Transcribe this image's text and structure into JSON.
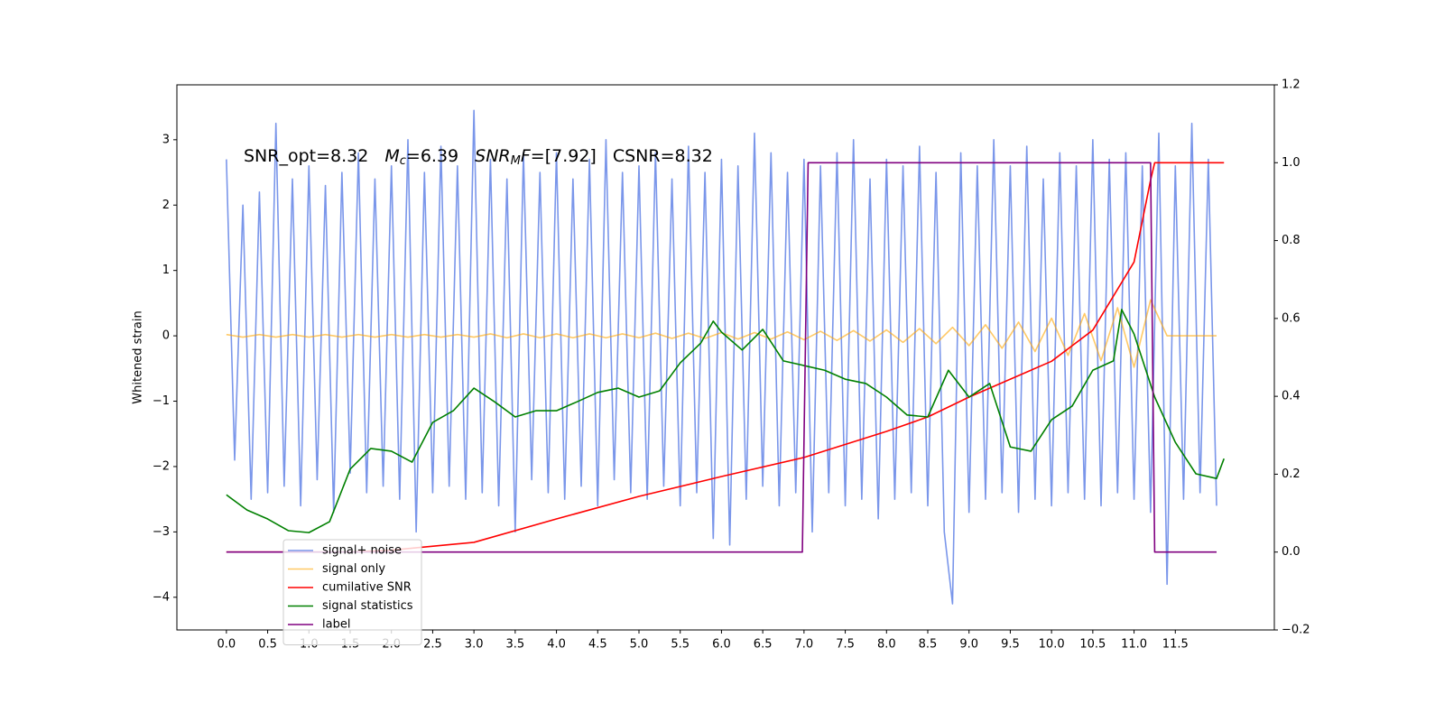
{
  "chart_data": {
    "type": "line",
    "ylabel": "Whitened strain",
    "annotation": [
      [
        {
          "text": "SNR_opt=8.32"
        }
      ],
      [
        {
          "text": "M",
          "style": "italic"
        },
        {
          "text": "c",
          "style": "sub"
        },
        {
          "text": "=6.39"
        }
      ],
      [
        {
          "text": "SNR",
          "style": "italic"
        },
        {
          "text": "M",
          "style": "sub"
        },
        {
          "text": "F",
          "style": "italic"
        },
        {
          "text": "=[7.92]"
        }
      ],
      [
        {
          "text": "CSNR=8.32"
        }
      ]
    ],
    "xlim": [
      -0.6,
      12.7
    ],
    "ylim": [
      -4.5,
      3.84
    ],
    "y2lim": [
      -0.2,
      1.2
    ],
    "xticks": [
      {
        "value": 0,
        "label": "0.0"
      },
      0.5,
      {
        "value": 1,
        "label": "1.0"
      },
      1.5,
      {
        "value": 2,
        "label": "2.0"
      },
      2.5,
      {
        "value": 3,
        "label": "3.0"
      },
      3.5,
      {
        "value": 4,
        "label": "4.0"
      },
      4.5,
      {
        "value": 5,
        "label": "5.0"
      },
      5.5,
      {
        "value": 6,
        "label": "6.0"
      },
      6.5,
      {
        "value": 7,
        "label": "7.0"
      },
      7.5,
      {
        "value": 8,
        "label": "8.0"
      },
      8.5,
      {
        "value": 9,
        "label": "9.0"
      },
      9.5,
      {
        "value": 10,
        "label": "10.0"
      },
      10.5,
      {
        "value": 11,
        "label": "11.0"
      },
      11.5
    ],
    "yticks": [
      {
        "value": -4,
        "label": "−4"
      },
      {
        "value": -3,
        "label": "−3"
      },
      {
        "value": -2,
        "label": "−2"
      },
      {
        "value": -1,
        "label": "−1"
      },
      0,
      1,
      2,
      3
    ],
    "y2ticks": [
      {
        "value": -0.2,
        "label": "−0.2"
      },
      {
        "value": 0,
        "label": "0.0"
      },
      0.2,
      0.4,
      0.6,
      0.8,
      {
        "value": 1,
        "label": "1.0"
      },
      1.2
    ],
    "legend": "lower left",
    "series": [
      {
        "name": "signal+ noise",
        "color": "#4169e1",
        "alpha": 0.7,
        "axis": "y",
        "x": [
          0,
          0.1,
          0.2,
          0.3,
          0.4,
          0.5,
          0.6,
          0.7,
          0.8,
          0.9,
          1,
          1.1,
          1.2,
          1.3,
          1.4,
          1.5,
          1.6,
          1.7,
          1.8,
          1.9,
          2,
          2.1,
          2.2,
          2.3,
          2.4,
          2.5,
          2.6,
          2.7,
          2.8,
          2.9,
          3,
          3.1,
          3.2,
          3.3,
          3.4,
          3.5,
          3.6,
          3.7,
          3.8,
          3.9,
          4,
          4.1,
          4.2,
          4.3,
          4.4,
          4.5,
          4.6,
          4.7,
          4.8,
          4.9,
          5,
          5.1,
          5.2,
          5.3,
          5.4,
          5.5,
          5.6,
          5.7,
          5.8,
          5.9,
          6,
          6.1,
          6.2,
          6.3,
          6.4,
          6.5,
          6.6,
          6.7,
          6.8,
          6.9,
          7,
          7.1,
          7.2,
          7.3,
          7.4,
          7.5,
          7.6,
          7.7,
          7.8,
          7.9,
          8,
          8.1,
          8.2,
          8.3,
          8.4,
          8.5,
          8.6,
          8.7,
          8.8,
          8.9,
          9,
          9.1,
          9.2,
          9.3,
          9.4,
          9.5,
          9.6,
          9.7,
          9.8,
          9.9,
          10,
          10.1,
          10.2,
          10.3,
          10.4,
          10.5,
          10.6,
          10.7,
          10.8,
          10.9,
          11,
          11.1,
          11.2,
          11.3,
          11.4,
          11.5,
          11.6,
          11.7,
          11.8,
          11.9,
          12
        ],
        "values": [
          2.7,
          -1.9,
          2.0,
          -2.5,
          2.2,
          -2.4,
          3.25,
          -2.3,
          2.4,
          -2.6,
          2.6,
          -2.2,
          2.3,
          -2.7,
          2.5,
          -2.1,
          2.8,
          -2.4,
          2.4,
          -2.3,
          2.6,
          -2.5,
          3.0,
          -3.0,
          2.5,
          -2.4,
          2.9,
          -2.3,
          2.6,
          -2.5,
          3.45,
          -2.4,
          2.7,
          -2.6,
          2.4,
          -3.0,
          2.8,
          -2.2,
          2.5,
          -2.4,
          2.8,
          -2.5,
          2.4,
          -2.3,
          2.7,
          -2.6,
          3.0,
          -2.2,
          2.5,
          -2.4,
          2.6,
          -2.5,
          2.8,
          -2.3,
          2.4,
          -2.6,
          2.9,
          -2.4,
          2.5,
          -3.1,
          2.7,
          -3.2,
          2.6,
          -2.5,
          3.1,
          -2.3,
          2.8,
          -2.6,
          2.5,
          -2.4,
          2.7,
          -3.0,
          2.6,
          -2.4,
          2.8,
          -2.6,
          3.0,
          -2.5,
          2.4,
          -2.8,
          2.7,
          -2.5,
          2.6,
          -2.4,
          2.9,
          -2.6,
          2.5,
          -3.0,
          -4.1,
          2.8,
          -2.7,
          2.6,
          -2.5,
          3.0,
          -2.4,
          2.6,
          -2.7,
          2.9,
          -2.5,
          2.4,
          -2.6,
          2.8,
          -2.4,
          2.6,
          -2.5,
          3.0,
          -2.6,
          2.7,
          -2.4,
          2.8,
          -2.5,
          2.6,
          -2.7,
          3.1,
          -3.8,
          2.6,
          -2.5,
          3.25,
          -2.4,
          2.7,
          -2.6
        ]
      },
      {
        "name": "signal only",
        "color": "#ffa500",
        "alpha": 0.6,
        "axis": "y",
        "x": [
          0,
          0.2,
          0.4,
          0.6,
          0.8,
          1,
          1.2,
          1.4,
          1.6,
          1.8,
          2,
          2.2,
          2.4,
          2.6,
          2.8,
          3,
          3.2,
          3.4,
          3.6,
          3.8,
          4,
          4.2,
          4.4,
          4.6,
          4.8,
          5,
          5.2,
          5.4,
          5.6,
          5.8,
          6,
          6.2,
          6.4,
          6.6,
          6.8,
          7,
          7.2,
          7.4,
          7.6,
          7.8,
          8,
          8.2,
          8.4,
          8.6,
          8.8,
          9,
          9.2,
          9.4,
          9.6,
          9.8,
          10,
          10.2,
          10.4,
          10.6,
          10.8,
          11,
          11.2,
          11.4,
          11.6,
          11.8,
          12
        ],
        "values": [
          0.02,
          -0.02,
          0.02,
          -0.02,
          0.02,
          -0.02,
          0.02,
          -0.02,
          0.02,
          -0.02,
          0.02,
          -0.02,
          0.02,
          -0.02,
          0.02,
          -0.02,
          0.03,
          -0.03,
          0.03,
          -0.03,
          0.03,
          -0.03,
          0.03,
          -0.03,
          0.03,
          -0.03,
          0.04,
          -0.04,
          0.04,
          -0.04,
          0.05,
          -0.05,
          0.05,
          -0.05,
          0.06,
          -0.06,
          0.07,
          -0.07,
          0.08,
          -0.08,
          0.09,
          -0.1,
          0.11,
          -0.12,
          0.13,
          -0.15,
          0.17,
          -0.19,
          0.21,
          -0.24,
          0.27,
          -0.3,
          0.34,
          -0.38,
          0.43,
          -0.48,
          0.55,
          0,
          0,
          0,
          0
        ]
      },
      {
        "name": "cumilative SNR",
        "color": "#ff0000",
        "alpha": 1,
        "axis": "y2",
        "x": [
          0,
          1.5,
          2,
          3,
          4,
          5,
          6,
          7,
          8,
          8.5,
          9,
          10,
          10.5,
          11,
          11.2,
          11.25,
          12.09
        ],
        "values": [
          0,
          0,
          0.005,
          0.025,
          0.085,
          0.143,
          0.194,
          0.243,
          0.31,
          0.347,
          0.398,
          0.49,
          0.57,
          0.745,
          0.955,
          1,
          1
        ]
      },
      {
        "name": "signal statistics",
        "color": "#008000",
        "alpha": 1,
        "axis": "y2",
        "x": [
          0,
          0.25,
          0.5,
          0.75,
          1,
          1.25,
          1.5,
          1.75,
          2,
          2.25,
          2.5,
          2.75,
          3,
          3.25,
          3.5,
          3.75,
          4,
          4.25,
          4.5,
          4.75,
          5,
          5.25,
          5.5,
          5.75,
          5.9,
          6,
          6.25,
          6.5,
          6.75,
          7,
          7.25,
          7.5,
          7.75,
          8,
          8.25,
          8.5,
          8.75,
          9,
          9.25,
          9.5,
          9.75,
          10,
          10.25,
          10.5,
          10.75,
          10.85,
          11,
          11.25,
          11.5,
          11.75,
          12,
          12.09
        ],
        "values": [
          0.147,
          0.108,
          0.085,
          0.055,
          0.05,
          0.078,
          0.213,
          0.266,
          0.259,
          0.231,
          0.333,
          0.363,
          0.421,
          0.386,
          0.347,
          0.363,
          0.363,
          0.386,
          0.41,
          0.421,
          0.398,
          0.414,
          0.486,
          0.537,
          0.593,
          0.565,
          0.519,
          0.572,
          0.491,
          0.479,
          0.467,
          0.444,
          0.433,
          0.398,
          0.352,
          0.347,
          0.467,
          0.398,
          0.433,
          0.27,
          0.259,
          0.34,
          0.375,
          0.467,
          0.491,
          0.623,
          0.56,
          0.398,
          0.282,
          0.201,
          0.189,
          0.24
        ]
      },
      {
        "name": "label",
        "color": "#800080",
        "alpha": 1,
        "axis": "y2",
        "x": [
          0,
          6.98,
          7.05,
          11.2,
          11.25,
          12
        ],
        "values": [
          0,
          0,
          1,
          1,
          0,
          0
        ]
      }
    ]
  }
}
